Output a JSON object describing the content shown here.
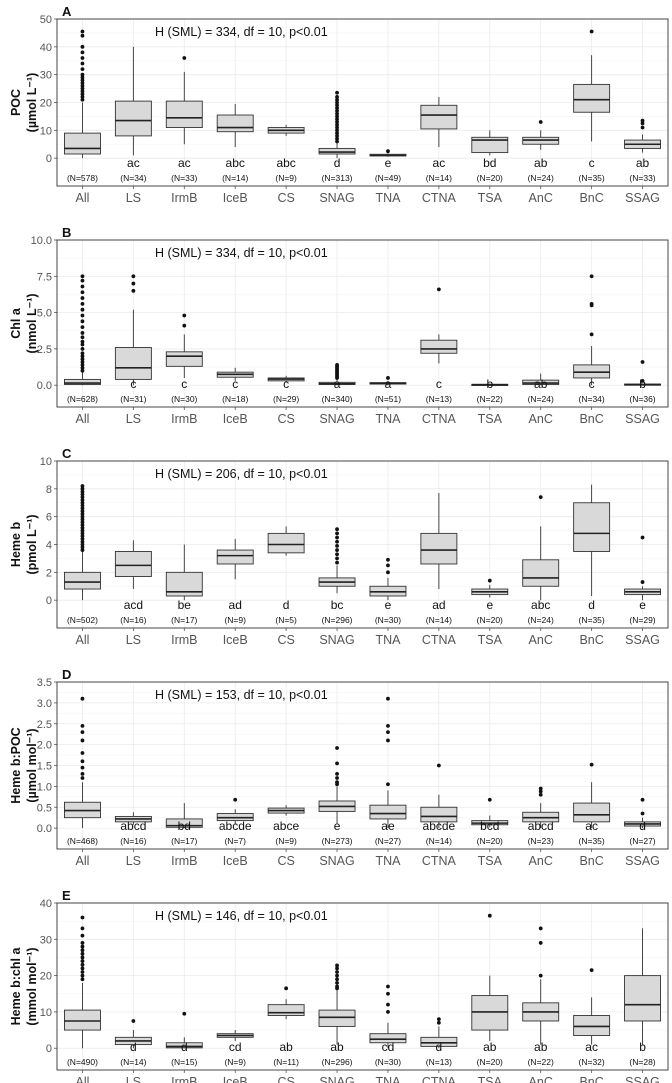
{
  "chart_data": [
    {
      "type": "box",
      "panel_label": "A",
      "title": "H (SML) = 334, df = 10, p<0.01",
      "ylabel_main": "POC",
      "ylabel_unit": "(µmol L⁻¹)",
      "ylim": [
        -10,
        50
      ],
      "yticks": [
        0,
        10,
        20,
        30,
        40,
        50
      ],
      "ytick_labels": [
        "0",
        "10",
        "20",
        "30",
        "40",
        "50"
      ],
      "categories": [
        "All",
        "LS",
        "IrmB",
        "IceB",
        "CS",
        "SNAG",
        "TNA",
        "CTNA",
        "TSA",
        "AnC",
        "BnC",
        "SSAG"
      ],
      "letters": [
        "",
        "ac",
        "ac",
        "abc",
        "abc",
        "d",
        "e",
        "ac",
        "bd",
        "ab",
        "c",
        "ab"
      ],
      "counts": [
        "(N=578)",
        "(N=34)",
        "(N=33)",
        "(N=14)",
        "(N=9)",
        "(N=313)",
        "(N=49)",
        "(N=14)",
        "(N=20)",
        "(N=24)",
        "(N=35)",
        "(N=33)"
      ],
      "boxes": [
        {
          "wlo": 0,
          "q1": 1.5,
          "med": 3.5,
          "q3": 9,
          "whi": 20
        },
        {
          "wlo": 1,
          "q1": 8,
          "med": 13.5,
          "q3": 20.5,
          "whi": 40
        },
        {
          "wlo": 5,
          "q1": 11,
          "med": 14.5,
          "q3": 20.5,
          "whi": 31
        },
        {
          "wlo": 4,
          "q1": 9.5,
          "med": 11,
          "q3": 15.5,
          "whi": 19.5
        },
        {
          "wlo": 8,
          "q1": 9,
          "med": 10,
          "q3": 11,
          "whi": 12
        },
        {
          "wlo": 0,
          "q1": 1.5,
          "med": 2.2,
          "q3": 3.5,
          "whi": 5.5
        },
        {
          "wlo": 0.5,
          "q1": 0.8,
          "med": 1,
          "q3": 1.4,
          "whi": 1.8
        },
        {
          "wlo": 4,
          "q1": 10.5,
          "med": 15.5,
          "q3": 19,
          "whi": 22
        },
        {
          "wlo": 1,
          "q1": 2,
          "med": 6.5,
          "q3": 7.5,
          "whi": 10
        },
        {
          "wlo": 3,
          "q1": 5,
          "med": 6.5,
          "q3": 7.5,
          "whi": 10
        },
        {
          "wlo": 6,
          "q1": 16.5,
          "med": 21,
          "q3": 26.5,
          "whi": 37
        },
        {
          "wlo": 2,
          "q1": 3.5,
          "med": 5,
          "q3": 6.5,
          "whi": 8.5
        }
      ],
      "outliers": [
        [
          21,
          22,
          23,
          24,
          25,
          26,
          27,
          28,
          29,
          30,
          32,
          34,
          36,
          38,
          40,
          44,
          45.5
        ],
        [],
        [
          36
        ],
        [],
        [],
        [
          6,
          7,
          8,
          9,
          10,
          11,
          12,
          13,
          14,
          15,
          16,
          17,
          18,
          19,
          20,
          21,
          22,
          23.5
        ],
        [
          2.5
        ],
        [],
        [],
        [
          13
        ],
        [
          45.5
        ],
        [
          11,
          12.5,
          13.5
        ]
      ]
    },
    {
      "type": "box",
      "panel_label": "B",
      "title": "H (SML) = 334, df = 10, p<0.01",
      "ylabel_main": "Chl a",
      "ylabel_unit": "(nmol L⁻¹)",
      "ylim": [
        -1.5,
        10
      ],
      "yticks": [
        0,
        2.5,
        5,
        7.5,
        10
      ],
      "ytick_labels": [
        "0.0",
        "2.5",
        "5.0",
        "7.5",
        "10.0"
      ],
      "categories": [
        "All",
        "LS",
        "IrmB",
        "IceB",
        "CS",
        "SNAG",
        "TNA",
        "CTNA",
        "TSA",
        "AnC",
        "BnC",
        "SSAG"
      ],
      "letters": [
        "",
        "c",
        "c",
        "c",
        "c",
        "a",
        "a",
        "c",
        "b",
        "ab",
        "c",
        "b"
      ],
      "counts": [
        "(N=628)",
        "(N=31)",
        "(N=30)",
        "(N=18)",
        "(N=29)",
        "(N=340)",
        "(N=51)",
        "(N=13)",
        "(N=22)",
        "(N=24)",
        "(N=34)",
        "(N=36)"
      ],
      "boxes": [
        {
          "wlo": 0,
          "q1": 0.05,
          "med": 0.15,
          "q3": 0.4,
          "whi": 0.9
        },
        {
          "wlo": 0,
          "q1": 0.4,
          "med": 1.2,
          "q3": 2.6,
          "whi": 5.2
        },
        {
          "wlo": 0.5,
          "q1": 1.3,
          "med": 2,
          "q3": 2.3,
          "whi": 3.5
        },
        {
          "wlo": 0.3,
          "q1": 0.55,
          "med": 0.75,
          "q3": 0.9,
          "whi": 1.2
        },
        {
          "wlo": 0.2,
          "q1": 0.3,
          "med": 0.42,
          "q3": 0.5,
          "whi": 0.65
        },
        {
          "wlo": 0,
          "q1": 0.05,
          "med": 0.1,
          "q3": 0.2,
          "whi": 0.4
        },
        {
          "wlo": 0,
          "q1": 0.08,
          "med": 0.12,
          "q3": 0.18,
          "whi": 0.3
        },
        {
          "wlo": 1.5,
          "q1": 2.2,
          "med": 2.5,
          "q3": 3.1,
          "whi": 3.5
        },
        {
          "wlo": 0,
          "q1": 0.02,
          "med": 0.04,
          "q3": 0.06,
          "whi": 0.1
        },
        {
          "wlo": 0,
          "q1": 0.05,
          "med": 0.15,
          "q3": 0.35,
          "whi": 0.8
        },
        {
          "wlo": 0,
          "q1": 0.5,
          "med": 0.9,
          "q3": 1.4,
          "whi": 2.7
        },
        {
          "wlo": 0,
          "q1": 0.02,
          "med": 0.05,
          "q3": 0.08,
          "whi": 0.12
        }
      ],
      "outliers": [
        [
          1.0,
          1.2,
          1.4,
          1.6,
          1.8,
          2.0,
          2.2,
          2.5,
          2.8,
          3.0,
          3.3,
          3.6,
          4.0,
          4.4,
          4.8,
          5.2,
          5.6,
          6.0,
          6.4,
          6.8,
          7.2,
          7.5
        ],
        [
          6.5,
          7.0,
          7.5
        ],
        [
          4.1,
          4.8
        ],
        [],
        [],
        [
          0.5,
          0.6,
          0.7,
          0.8,
          0.9,
          1.0,
          1.1,
          1.2,
          1.3,
          1.4
        ],
        [
          0.5
        ],
        [
          6.6
        ],
        [],
        [],
        [
          3.5,
          5.5,
          5.6,
          7.5
        ],
        [
          0.3,
          1.6
        ]
      ]
    },
    {
      "type": "box",
      "panel_label": "C",
      "title": "H (SML) = 206, df = 10, p<0.01",
      "ylabel_main": "Heme b",
      "ylabel_unit": "(pmol L⁻¹)",
      "ylim": [
        -2,
        10
      ],
      "yticks": [
        0,
        2,
        4,
        6,
        8,
        10
      ],
      "ytick_labels": [
        "0",
        "2",
        "4",
        "6",
        "8",
        "10"
      ],
      "categories": [
        "All",
        "LS",
        "IrmB",
        "IceB",
        "CS",
        "SNAG",
        "TNA",
        "CTNA",
        "TSA",
        "AnC",
        "BnC",
        "SSAG"
      ],
      "letters": [
        "",
        "acd",
        "be",
        "ad",
        "d",
        "bc",
        "e",
        "ad",
        "e",
        "abc",
        "d",
        "e"
      ],
      "counts": [
        "(N=502)",
        "(N=16)",
        "(N=17)",
        "(N=9)",
        "(N=5)",
        "(N=296)",
        "(N=30)",
        "(N=14)",
        "(N=20)",
        "(N=24)",
        "(N=35)",
        "(N=29)"
      ],
      "boxes": [
        {
          "wlo": 0,
          "q1": 0.8,
          "med": 1.3,
          "q3": 2.0,
          "whi": 3.5
        },
        {
          "wlo": 0.8,
          "q1": 1.7,
          "med": 2.5,
          "q3": 3.5,
          "whi": 4.3
        },
        {
          "wlo": 0,
          "q1": 0.3,
          "med": 0.6,
          "q3": 2.0,
          "whi": 4.0
        },
        {
          "wlo": 1.5,
          "q1": 2.6,
          "med": 3.2,
          "q3": 3.6,
          "whi": 4.4
        },
        {
          "wlo": 3.2,
          "q1": 3.4,
          "med": 4.0,
          "q3": 4.8,
          "whi": 5.3
        },
        {
          "wlo": 0.5,
          "q1": 1.0,
          "med": 1.3,
          "q3": 1.6,
          "whi": 2.5
        },
        {
          "wlo": 0,
          "q1": 0.3,
          "med": 0.6,
          "q3": 1.0,
          "whi": 1.6
        },
        {
          "wlo": 0.8,
          "q1": 2.6,
          "med": 3.6,
          "q3": 4.8,
          "whi": 7.7
        },
        {
          "wlo": 0.2,
          "q1": 0.4,
          "med": 0.6,
          "q3": 0.8,
          "whi": 1.1
        },
        {
          "wlo": 0,
          "q1": 1.0,
          "med": 1.6,
          "q3": 2.9,
          "whi": 5.3
        },
        {
          "wlo": 0.3,
          "q1": 3.5,
          "med": 4.8,
          "q3": 7.0,
          "whi": 8.3
        },
        {
          "wlo": 0,
          "q1": 0.4,
          "med": 0.6,
          "q3": 0.8,
          "whi": 1.0
        }
      ],
      "outliers": [
        [
          3.6,
          3.8,
          4.0,
          4.2,
          4.4,
          4.6,
          4.8,
          5.0,
          5.2,
          5.4,
          5.6,
          5.8,
          6.0,
          6.2,
          6.4,
          6.6,
          6.8,
          7.0,
          7.2,
          7.4,
          7.6,
          7.8,
          8.0,
          8.2
        ],
        [],
        [],
        [],
        [],
        [
          2.7,
          3.0,
          3.3,
          3.6,
          3.9,
          4.2,
          4.5,
          4.8,
          5.1
        ],
        [
          2.0,
          2.5,
          2.9
        ],
        [],
        [
          1.4
        ],
        [
          7.4
        ],
        [],
        [
          1.3,
          4.5
        ]
      ]
    },
    {
      "type": "box",
      "panel_label": "D",
      "title": "H (SML) = 153, df = 10, p<0.01",
      "ylabel_main": "Heme b:POC",
      "ylabel_unit": "(µmol mol⁻¹)",
      "ylim": [
        -0.5,
        3.5
      ],
      "yticks": [
        0,
        0.5,
        1,
        1.5,
        2,
        2.5,
        3,
        3.5
      ],
      "ytick_labels": [
        "0.0",
        "0.5",
        "1.0",
        "1.5",
        "2.0",
        "2.5",
        "3.0",
        "3.5"
      ],
      "categories": [
        "All",
        "LS",
        "IrmB",
        "IceB",
        "CS",
        "SNAG",
        "TNA",
        "CTNA",
        "TSA",
        "AnC",
        "BnC",
        "SSAG"
      ],
      "letters": [
        "",
        "abcd",
        "bd",
        "abcde",
        "abce",
        "e",
        "ae",
        "abcde",
        "bcd",
        "abcd",
        "ac",
        "d"
      ],
      "counts": [
        "(N=468)",
        "(N=16)",
        "(N=17)",
        "(N=7)",
        "(N=9)",
        "(N=273)",
        "(N=27)",
        "(N=14)",
        "(N=20)",
        "(N=23)",
        "(N=35)",
        "(N=27)"
      ],
      "boxes": [
        {
          "wlo": 0,
          "q1": 0.25,
          "med": 0.42,
          "q3": 0.62,
          "whi": 1.1
        },
        {
          "wlo": 0.08,
          "q1": 0.15,
          "med": 0.22,
          "q3": 0.28,
          "whi": 0.38
        },
        {
          "wlo": 0,
          "q1": 0.02,
          "med": 0.06,
          "q3": 0.22,
          "whi": 0.6
        },
        {
          "wlo": 0.1,
          "q1": 0.18,
          "med": 0.25,
          "q3": 0.35,
          "whi": 0.45
        },
        {
          "wlo": 0.3,
          "q1": 0.36,
          "med": 0.42,
          "q3": 0.48,
          "whi": 0.55
        },
        {
          "wlo": 0.1,
          "q1": 0.4,
          "med": 0.52,
          "q3": 0.65,
          "whi": 1.0
        },
        {
          "wlo": 0,
          "q1": 0.22,
          "med": 0.35,
          "q3": 0.55,
          "whi": 0.9
        },
        {
          "wlo": 0,
          "q1": 0.15,
          "med": 0.28,
          "q3": 0.5,
          "whi": 0.8
        },
        {
          "wlo": 0.02,
          "q1": 0.08,
          "med": 0.12,
          "q3": 0.18,
          "whi": 0.3
        },
        {
          "wlo": 0,
          "q1": 0.15,
          "med": 0.25,
          "q3": 0.38,
          "whi": 0.6
        },
        {
          "wlo": 0,
          "q1": 0.15,
          "med": 0.32,
          "q3": 0.6,
          "whi": 1.1
        },
        {
          "wlo": 0,
          "q1": 0.05,
          "med": 0.1,
          "q3": 0.15,
          "whi": 0.25
        }
      ],
      "outliers": [
        [
          1.2,
          1.3,
          1.45,
          1.6,
          1.8,
          2.1,
          2.3,
          2.45,
          3.1
        ],
        [],
        [],
        [
          0.68
        ],
        [],
        [
          1.05,
          1.1,
          1.2,
          1.3,
          1.55,
          1.92
        ],
        [
          1.05,
          2.1,
          2.3,
          2.45,
          3.1
        ],
        [
          1.5
        ],
        [
          0.68
        ],
        [
          0.8,
          0.88,
          0.95
        ],
        [
          1.52
        ],
        [
          0.35,
          0.68
        ]
      ]
    },
    {
      "type": "box",
      "panel_label": "E",
      "title": "H (SML) = 146, df = 10, p<0.01",
      "ylabel_main": "Heme b:chl a",
      "ylabel_unit": "(mmol mol⁻¹)",
      "ylim": [
        -6,
        40
      ],
      "yticks": [
        0,
        10,
        20,
        30,
        40
      ],
      "ytick_labels": [
        "0",
        "10",
        "20",
        "30",
        "40"
      ],
      "categories": [
        "All",
        "LS",
        "IrmB",
        "IceB",
        "CS",
        "SNAG",
        "TNA",
        "CTNA",
        "TSA",
        "AnC",
        "BnC",
        "SSAG"
      ],
      "letters": [
        "",
        "d",
        "d",
        "cd",
        "ab",
        "ab",
        "cd",
        "d",
        "ab",
        "ab",
        "ac",
        "b"
      ],
      "counts": [
        "(N=490)",
        "(N=14)",
        "(N=15)",
        "(N=9)",
        "(N=11)",
        "(N=296)",
        "(N=30)",
        "(N=13)",
        "(N=20)",
        "(N=22)",
        "(N=32)",
        "(N=28)"
      ],
      "boxes": [
        {
          "wlo": 0,
          "q1": 5,
          "med": 7.5,
          "q3": 10.5,
          "whi": 18
        },
        {
          "wlo": 0,
          "q1": 1,
          "med": 2,
          "q3": 3,
          "whi": 5
        },
        {
          "wlo": 0,
          "q1": 0.1,
          "med": 0.5,
          "q3": 1.5,
          "whi": 3
        },
        {
          "wlo": 2,
          "q1": 3,
          "med": 3.5,
          "q3": 4,
          "whi": 5
        },
        {
          "wlo": 8,
          "q1": 9,
          "med": 9.8,
          "q3": 12,
          "whi": 13.5
        },
        {
          "wlo": 1,
          "q1": 6,
          "med": 8.5,
          "q3": 10.5,
          "whi": 16
        },
        {
          "wlo": 0,
          "q1": 1.5,
          "med": 2.5,
          "q3": 4,
          "whi": 7
        },
        {
          "wlo": 0,
          "q1": 0.5,
          "med": 1.5,
          "q3": 3,
          "whi": 6
        },
        {
          "wlo": 2,
          "q1": 5,
          "med": 10,
          "q3": 14.5,
          "whi": 20
        },
        {
          "wlo": 1,
          "q1": 7.5,
          "med": 10,
          "q3": 12.5,
          "whi": 19
        },
        {
          "wlo": 1,
          "q1": 3.5,
          "med": 6,
          "q3": 9,
          "whi": 14
        },
        {
          "wlo": 1,
          "q1": 7.5,
          "med": 12,
          "q3": 20,
          "whi": 33
        }
      ],
      "outliers": [
        [
          19,
          20,
          21,
          22,
          23,
          24,
          25,
          26,
          27,
          28,
          29,
          31,
          33,
          36
        ],
        [
          7.5
        ],
        [
          9.5
        ],
        [],
        [
          16.5
        ],
        [
          16.5,
          17,
          18,
          19,
          20,
          21,
          22,
          22.8
        ],
        [
          10,
          12,
          15,
          17
        ],
        [
          7,
          8
        ],
        [
          36.5
        ],
        [
          20,
          29,
          33
        ],
        [
          21.5
        ],
        []
      ]
    }
  ]
}
